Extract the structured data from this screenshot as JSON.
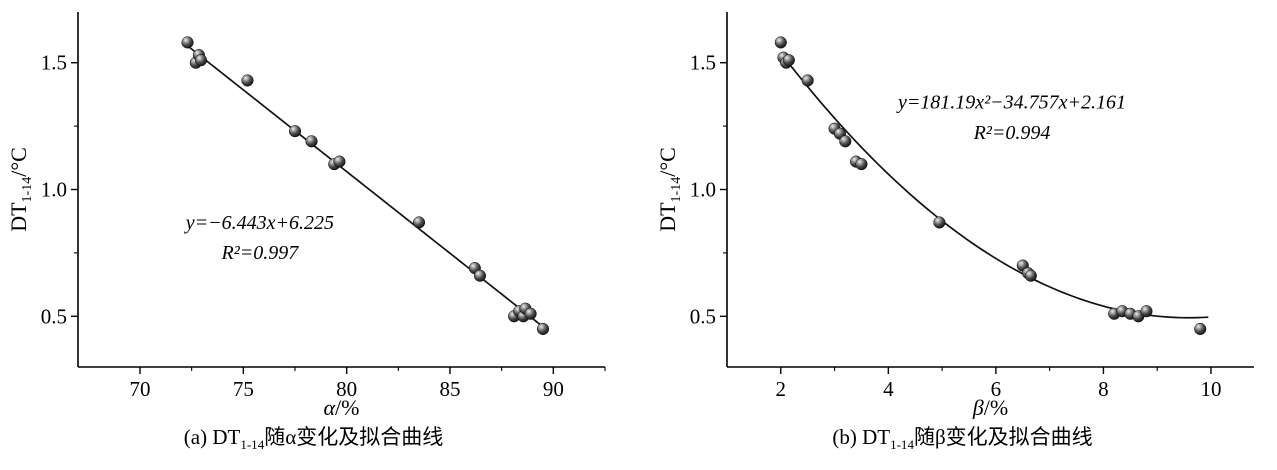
{
  "captions": {
    "a": {
      "pre": "(a) DT",
      "sub": "1-14",
      "post": "随α变化及拟合曲线"
    },
    "b": {
      "pre": "(b) DT",
      "sub": "1-14",
      "post": "随β变化及拟合曲线"
    }
  },
  "chart_data": [
    {
      "type": "scatter",
      "title": "",
      "xlabel": {
        "var": "α",
        "rest": "/%"
      },
      "ylabel": {
        "main": "DT",
        "sub": "1-14",
        "rest": "/°C"
      },
      "xlim": [
        67,
        92.5
      ],
      "ylim": [
        0.3,
        1.7
      ],
      "xtick_values": [
        70,
        75,
        80,
        85,
        90
      ],
      "xtick_labels": [
        "70",
        "75",
        "80",
        "85",
        "90"
      ],
      "xminor": [
        72.5,
        77.5,
        82.5,
        87.5,
        92.5
      ],
      "ytick_values": [
        0.5,
        1.0,
        1.5
      ],
      "ytick_labels": [
        "0.5",
        "1.0",
        "1.5"
      ],
      "yminor": [
        0.75,
        1.25
      ],
      "points": [
        [
          72.3,
          1.58
        ],
        [
          72.7,
          1.5
        ],
        [
          72.85,
          1.53
        ],
        [
          72.95,
          1.51
        ],
        [
          75.2,
          1.43
        ],
        [
          77.5,
          1.23
        ],
        [
          78.3,
          1.19
        ],
        [
          79.4,
          1.1
        ],
        [
          79.65,
          1.11
        ],
        [
          83.5,
          0.87
        ],
        [
          86.2,
          0.69
        ],
        [
          86.45,
          0.66
        ],
        [
          88.1,
          0.5
        ],
        [
          88.35,
          0.52
        ],
        [
          88.55,
          0.5
        ],
        [
          88.65,
          0.53
        ],
        [
          88.9,
          0.51
        ],
        [
          89.5,
          0.45
        ]
      ],
      "fit": {
        "kind": "linear",
        "coeffs": [
          0,
          -6.443,
          6.225
        ],
        "x_scale": 0.01,
        "x_start": 72.2,
        "x_end": 89.7,
        "equation": "y=−6.443x+6.225",
        "r2": "R²=0.997"
      },
      "annotations": [
        {
          "x": 75.8,
          "y": 0.845,
          "text": "y=−6.443x+6.225"
        },
        {
          "x": 75.8,
          "y": 0.725,
          "text": "R²=0.997"
        }
      ]
    },
    {
      "type": "scatter",
      "title": "",
      "xlabel": {
        "var": "β",
        "rest": "/%"
      },
      "ylabel": {
        "main": "DT",
        "sub": "1-14",
        "rest": "/°C"
      },
      "xlim": [
        1,
        10.8
      ],
      "ylim": [
        0.3,
        1.7
      ],
      "xtick_values": [
        2,
        4,
        6,
        8,
        10
      ],
      "xtick_labels": [
        "2",
        "4",
        "6",
        "8",
        "10"
      ],
      "xminor": [
        3,
        5,
        7,
        9
      ],
      "ytick_values": [
        0.5,
        1.0,
        1.5
      ],
      "ytick_labels": [
        "0.5",
        "1.0",
        "1.5"
      ],
      "yminor": [
        0.75,
        1.25
      ],
      "points": [
        [
          2.0,
          1.58
        ],
        [
          2.05,
          1.52
        ],
        [
          2.1,
          1.5
        ],
        [
          2.15,
          1.51
        ],
        [
          2.5,
          1.43
        ],
        [
          3.0,
          1.24
        ],
        [
          3.1,
          1.22
        ],
        [
          3.2,
          1.19
        ],
        [
          3.4,
          1.11
        ],
        [
          3.5,
          1.1
        ],
        [
          4.95,
          0.87
        ],
        [
          6.5,
          0.7
        ],
        [
          6.6,
          0.67
        ],
        [
          6.65,
          0.66
        ],
        [
          8.2,
          0.51
        ],
        [
          8.35,
          0.52
        ],
        [
          8.5,
          0.51
        ],
        [
          8.65,
          0.5
        ],
        [
          8.8,
          0.52
        ],
        [
          9.8,
          0.45
        ]
      ],
      "fit": {
        "kind": "quadratic",
        "coeffs": [
          181.19,
          -34.757,
          2.161
        ],
        "x_scale": 0.01,
        "x_start": 2.0,
        "x_end": 9.95,
        "equation": "y=181.19x²−34.757x+2.161",
        "r2": "R²=0.994"
      },
      "annotations": [
        {
          "x": 6.3,
          "y": 1.32,
          "text": "y=181.19x²−34.757x+2.161"
        },
        {
          "x": 6.3,
          "y": 1.2,
          "text": "R²=0.994"
        }
      ]
    }
  ]
}
